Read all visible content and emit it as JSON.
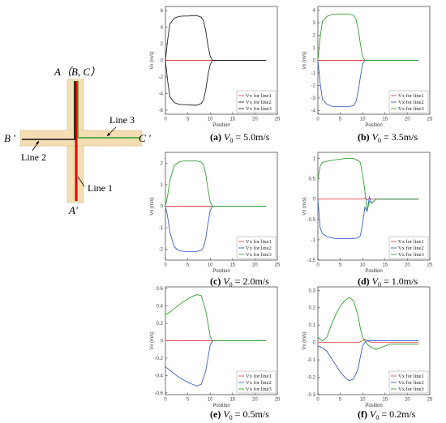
{
  "diagram": {
    "point_top": "A（B, C）",
    "point_left": "B '",
    "point_right": "C '",
    "point_bottom": "A'",
    "line1": "Line 1",
    "line2": "Line 2",
    "line3": "Line 3",
    "colors": {
      "arm": "#f5deb3",
      "line1": "#e00000",
      "line2": "#111111",
      "line3": "#2e9e2e"
    }
  },
  "series_colors": [
    "#e04a4a",
    "#3a5fc8",
    "#33a033"
  ],
  "chart_data": [
    {
      "type": "line",
      "caption_id": "(a)",
      "caption_value": "= 5.0m/s",
      "xlabel": "Position",
      "ylabel": "Vx (m/s)",
      "xlim": [
        0,
        25
      ],
      "ylim": [
        -6.5,
        6.5
      ],
      "xticks": [
        0,
        5,
        10,
        15,
        20,
        25
      ],
      "yticks": [
        -6,
        -4,
        -2,
        0,
        2,
        4,
        6
      ],
      "legend_position": "bottom-right",
      "series": [
        {
          "name": "Vx for line1",
          "color": "#e04a4a",
          "x": [
            0,
            10.5
          ],
          "y": [
            0,
            0
          ]
        },
        {
          "name": "Vx for line2",
          "color": "#222222",
          "x": [
            0,
            0.5,
            1,
            2,
            3,
            4,
            5,
            6,
            7,
            8,
            8.5,
            9,
            9.5,
            10,
            10.5,
            22.5
          ],
          "y": [
            0,
            -2.5,
            -4.4,
            -5.1,
            -5.3,
            -5.35,
            -5.35,
            -5.4,
            -5.4,
            -5.2,
            -4.8,
            -3.6,
            -1.8,
            -0.5,
            0,
            0
          ]
        },
        {
          "name": "Vx for line3",
          "color": "#222222",
          "x": [
            0,
            0.5,
            1,
            2,
            3,
            4,
            5,
            6,
            7,
            8,
            8.5,
            9,
            9.5,
            10,
            10.5
          ],
          "y": [
            0,
            2.5,
            4.4,
            5.1,
            5.3,
            5.35,
            5.35,
            5.4,
            5.4,
            5.2,
            4.8,
            3.6,
            1.8,
            0.5,
            0
          ]
        }
      ]
    },
    {
      "type": "line",
      "caption_id": "(b)",
      "caption_value": "= 3.5m/s",
      "xlabel": "Position",
      "ylabel": "Vx (m/s)",
      "xlim": [
        0,
        25
      ],
      "ylim": [
        -4.3,
        4.3
      ],
      "xticks": [
        0,
        5,
        10,
        15,
        20,
        25
      ],
      "yticks": [
        -4,
        -3,
        -2,
        -1,
        0,
        1,
        2,
        3,
        4
      ],
      "legend_position": "bottom-right",
      "series": [
        {
          "name": "Vx for line1",
          "color": "#e04a4a",
          "x": [
            0,
            22.5
          ],
          "y": [
            0,
            0
          ]
        },
        {
          "name": "Vx for line2",
          "color": "#3a5fc8",
          "x": [
            0,
            0.5,
            1,
            2,
            3,
            4,
            5,
            6,
            7,
            8,
            8.5,
            9,
            9.5,
            10,
            10.5,
            22.5
          ],
          "y": [
            0,
            -1.8,
            -3.1,
            -3.5,
            -3.65,
            -3.7,
            -3.7,
            -3.7,
            -3.7,
            -3.6,
            -3.3,
            -2.5,
            -1.3,
            -0.3,
            0,
            0
          ]
        },
        {
          "name": "Vx for line3",
          "color": "#33a033",
          "x": [
            0,
            0.5,
            1,
            2,
            3,
            4,
            5,
            6,
            7,
            8,
            8.5,
            9,
            9.5,
            10,
            10.5,
            22.5
          ],
          "y": [
            0,
            1.8,
            3.1,
            3.5,
            3.65,
            3.7,
            3.7,
            3.7,
            3.7,
            3.6,
            3.3,
            2.5,
            1.3,
            0.3,
            0,
            0
          ]
        }
      ]
    },
    {
      "type": "line",
      "caption_id": "(c)",
      "caption_value": "= 2.0m/s",
      "xlabel": "Position",
      "ylabel": "Vx (m/s)",
      "xlim": [
        0,
        25
      ],
      "ylim": [
        -2.5,
        2.5
      ],
      "xticks": [
        0,
        5,
        10,
        15,
        20,
        25
      ],
      "yticks": [
        -2,
        -1,
        0,
        1,
        2
      ],
      "legend_position": "bottom-right",
      "series": [
        {
          "name": "Vx for line1",
          "color": "#e04a4a",
          "x": [
            0,
            22.5
          ],
          "y": [
            0,
            0
          ]
        },
        {
          "name": "Vx for line2",
          "color": "#3a5fc8",
          "x": [
            0,
            0.5,
            1,
            2,
            3,
            4,
            5,
            6,
            7,
            8,
            8.5,
            9,
            9.5,
            10,
            10.5,
            22.5
          ],
          "y": [
            0,
            -0.5,
            -1.2,
            -1.9,
            -2.05,
            -2.1,
            -2.1,
            -2.1,
            -2.1,
            -2.05,
            -1.9,
            -1.5,
            -0.8,
            -0.2,
            0,
            0
          ]
        },
        {
          "name": "Vx for line3",
          "color": "#33a033",
          "x": [
            0,
            0.5,
            1,
            2,
            3,
            4,
            5,
            6,
            7,
            8,
            8.5,
            9,
            9.5,
            10,
            10.5,
            22.5
          ],
          "y": [
            0,
            0.5,
            1.2,
            1.9,
            2.05,
            2.1,
            2.1,
            2.1,
            2.1,
            2.05,
            1.9,
            1.5,
            0.8,
            0.2,
            0,
            0
          ]
        }
      ]
    },
    {
      "type": "line",
      "caption_id": "(d)",
      "caption_value": "= 1.0m/s",
      "xlabel": "Position",
      "ylabel": "Vx (m/s)",
      "xlim": [
        0,
        25
      ],
      "ylim": [
        -1.5,
        1.15
      ],
      "xticks": [
        0,
        5,
        10,
        15,
        20,
        25
      ],
      "yticks": [
        -1.5,
        -1,
        -0.5,
        0,
        0.5,
        1
      ],
      "legend_position": "bottom-right",
      "series": [
        {
          "name": "Vx for line1",
          "color": "#e04a4a",
          "x": [
            0,
            10,
            10.5,
            11,
            11.5,
            12,
            22.5
          ],
          "y": [
            0,
            0,
            0.03,
            -0.02,
            0.01,
            0,
            0
          ]
        },
        {
          "name": "Vx for line2",
          "color": "#3a5fc8",
          "x": [
            0,
            0.5,
            1,
            2,
            3,
            4,
            5,
            6,
            7,
            8,
            9,
            9.5,
            10,
            10.5,
            11,
            11.5,
            12,
            13,
            22.5
          ],
          "y": [
            0,
            -0.7,
            -0.85,
            -0.92,
            -0.95,
            -0.97,
            -0.97,
            -0.97,
            -0.97,
            -0.97,
            -0.95,
            -0.9,
            -0.6,
            -0.2,
            -0.3,
            0.05,
            -0.1,
            0,
            0
          ]
        },
        {
          "name": "Vx for line3",
          "color": "#33a033",
          "x": [
            0,
            0.5,
            1,
            2,
            3,
            4,
            5,
            6,
            7,
            8,
            9,
            9.5,
            10,
            10.5,
            11,
            11.5,
            12,
            13,
            22.5
          ],
          "y": [
            0.5,
            0.8,
            0.9,
            0.93,
            0.95,
            0.97,
            0.98,
            1.0,
            1.0,
            1.0,
            0.95,
            0.9,
            0.6,
            0.2,
            -0.3,
            -0.05,
            -0.1,
            0,
            0
          ]
        }
      ]
    },
    {
      "type": "line",
      "caption_id": "(e)",
      "caption_value": "= 0.5m/s",
      "xlabel": "Position",
      "ylabel": "Vx (m/s)",
      "xlim": [
        0,
        25
      ],
      "ylim": [
        -0.62,
        0.62
      ],
      "xticks": [
        0,
        5,
        10,
        15,
        20,
        25
      ],
      "yticks": [
        -0.6,
        -0.4,
        -0.2,
        0,
        0.2,
        0.4,
        0.6
      ],
      "legend_position": "bottom-right",
      "series": [
        {
          "name": "Vx for line1",
          "color": "#e04a4a",
          "x": [
            0,
            22.5
          ],
          "y": [
            0,
            0
          ]
        },
        {
          "name": "Vx for line2",
          "color": "#3a5fc8",
          "x": [
            0,
            1,
            2,
            3,
            4,
            5,
            6,
            7,
            8,
            9,
            9.5,
            10,
            10.5,
            22.5
          ],
          "y": [
            -0.3,
            -0.34,
            -0.38,
            -0.42,
            -0.45,
            -0.48,
            -0.5,
            -0.52,
            -0.5,
            -0.35,
            -0.2,
            -0.05,
            0,
            0
          ]
        },
        {
          "name": "Vx for line3",
          "color": "#33a033",
          "x": [
            0,
            1,
            2,
            3,
            4,
            5,
            6,
            7,
            8,
            9,
            9.5,
            10,
            10.5,
            22.5
          ],
          "y": [
            0.3,
            0.33,
            0.37,
            0.41,
            0.45,
            0.48,
            0.51,
            0.53,
            0.52,
            0.35,
            0.2,
            0.05,
            0,
            0
          ]
        }
      ]
    },
    {
      "type": "line",
      "caption_id": "(f)",
      "caption_value": "= 0.2m/s",
      "xlabel": "Position",
      "ylabel": "Vx (m/s)",
      "xlim": [
        0,
        25
      ],
      "ylim": [
        -0.3,
        0.32
      ],
      "xticks": [
        0,
        5,
        10,
        15,
        20,
        25
      ],
      "yticks": [
        -0.3,
        -0.2,
        -0.1,
        0,
        0.1,
        0.2,
        0.3
      ],
      "legend_position": "bottom-right",
      "series": [
        {
          "name": "Vx for line1",
          "color": "#e04a4a",
          "x": [
            0,
            9,
            10,
            10.5,
            11,
            12,
            22.5
          ],
          "y": [
            0,
            0,
            0.01,
            0.02,
            0.01,
            0,
            0
          ]
        },
        {
          "name": "Vx for line2",
          "color": "#3a5fc8",
          "x": [
            0,
            1,
            2,
            3,
            4,
            5,
            6,
            7,
            8,
            9,
            9.5,
            10,
            10.5,
            11,
            22.5
          ],
          "y": [
            -0.02,
            -0.03,
            -0.05,
            -0.09,
            -0.13,
            -0.17,
            -0.2,
            -0.22,
            -0.21,
            -0.15,
            -0.08,
            -0.02,
            0,
            0.01,
            0.01
          ]
        },
        {
          "name": "Vx for line3",
          "color": "#33a033",
          "x": [
            0,
            1,
            2,
            3,
            4,
            5,
            6,
            7,
            8,
            9,
            9.5,
            10,
            10.5,
            11,
            12,
            13,
            14,
            15,
            16,
            22.5
          ],
          "y": [
            0.03,
            0.01,
            0.03,
            0.1,
            0.16,
            0.21,
            0.24,
            0.26,
            0.24,
            0.15,
            0.08,
            0.03,
            0.01,
            -0.01,
            -0.03,
            -0.04,
            -0.03,
            -0.02,
            -0.01,
            -0.01
          ]
        }
      ]
    }
  ]
}
